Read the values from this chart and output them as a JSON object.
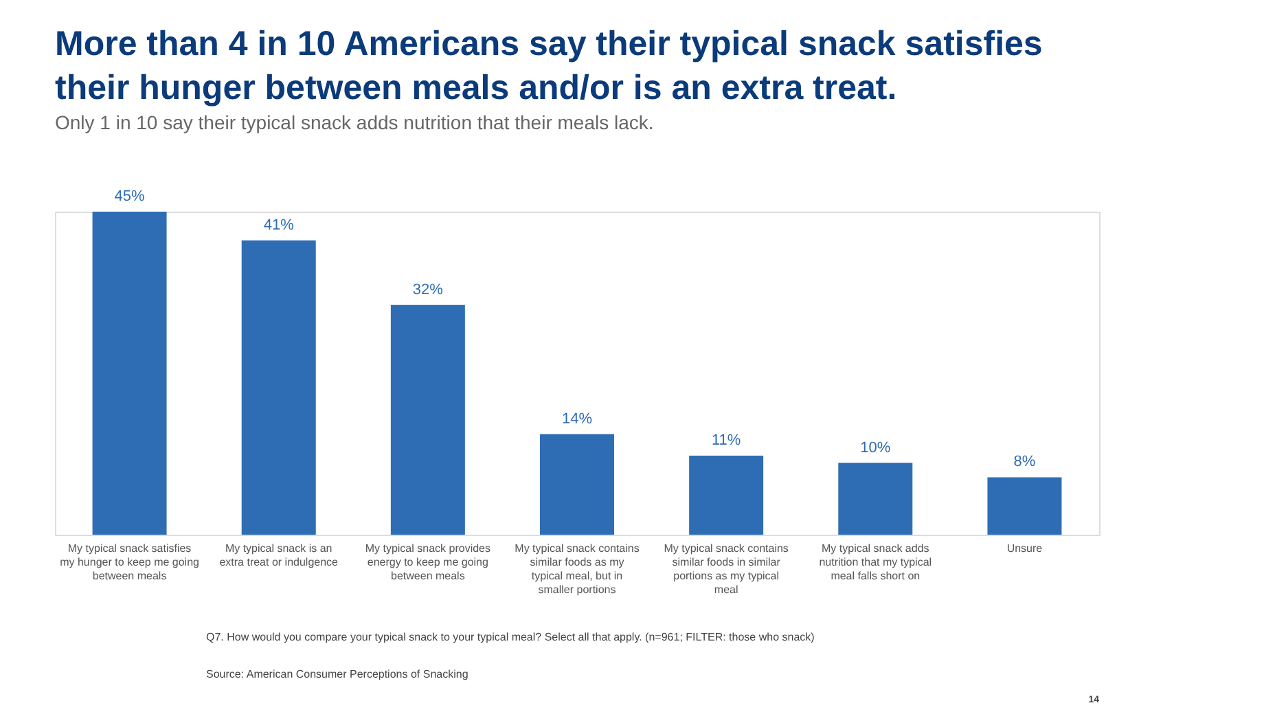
{
  "chart_data": {
    "type": "bar",
    "title": "More than 4 in 10 Americans say their typical snack satisfies their hunger between meals and/or is an extra treat.",
    "subtitle": "Only 1 in 10 say their typical snack adds nutrition that their meals lack.",
    "categories": [
      "My typical snack satisfies my hunger to keep me going between meals",
      "My typical snack is an extra treat or indulgence",
      "My typical snack provides energy to keep me going between meals",
      "My typical snack contains similar foods as my typical meal, but in smaller portions",
      "My typical snack contains similar foods in similar portions as my typical meal",
      "My typical snack adds nutrition that my typical meal falls short on",
      "Unsure"
    ],
    "values": [
      45,
      41,
      32,
      14,
      11,
      10,
      8
    ],
    "value_labels": [
      "45%",
      "41%",
      "32%",
      "14%",
      "11%",
      "10%",
      "8%"
    ],
    "color": "#2e6db4",
    "grid": false,
    "annotations": [
      "Q7. How would you compare your typical snack to your typical meal? Select all that apply. (n=961; FILTER: those who snack)",
      "Source: American Consumer Perceptions of Snacking",
      "14"
    ]
  }
}
